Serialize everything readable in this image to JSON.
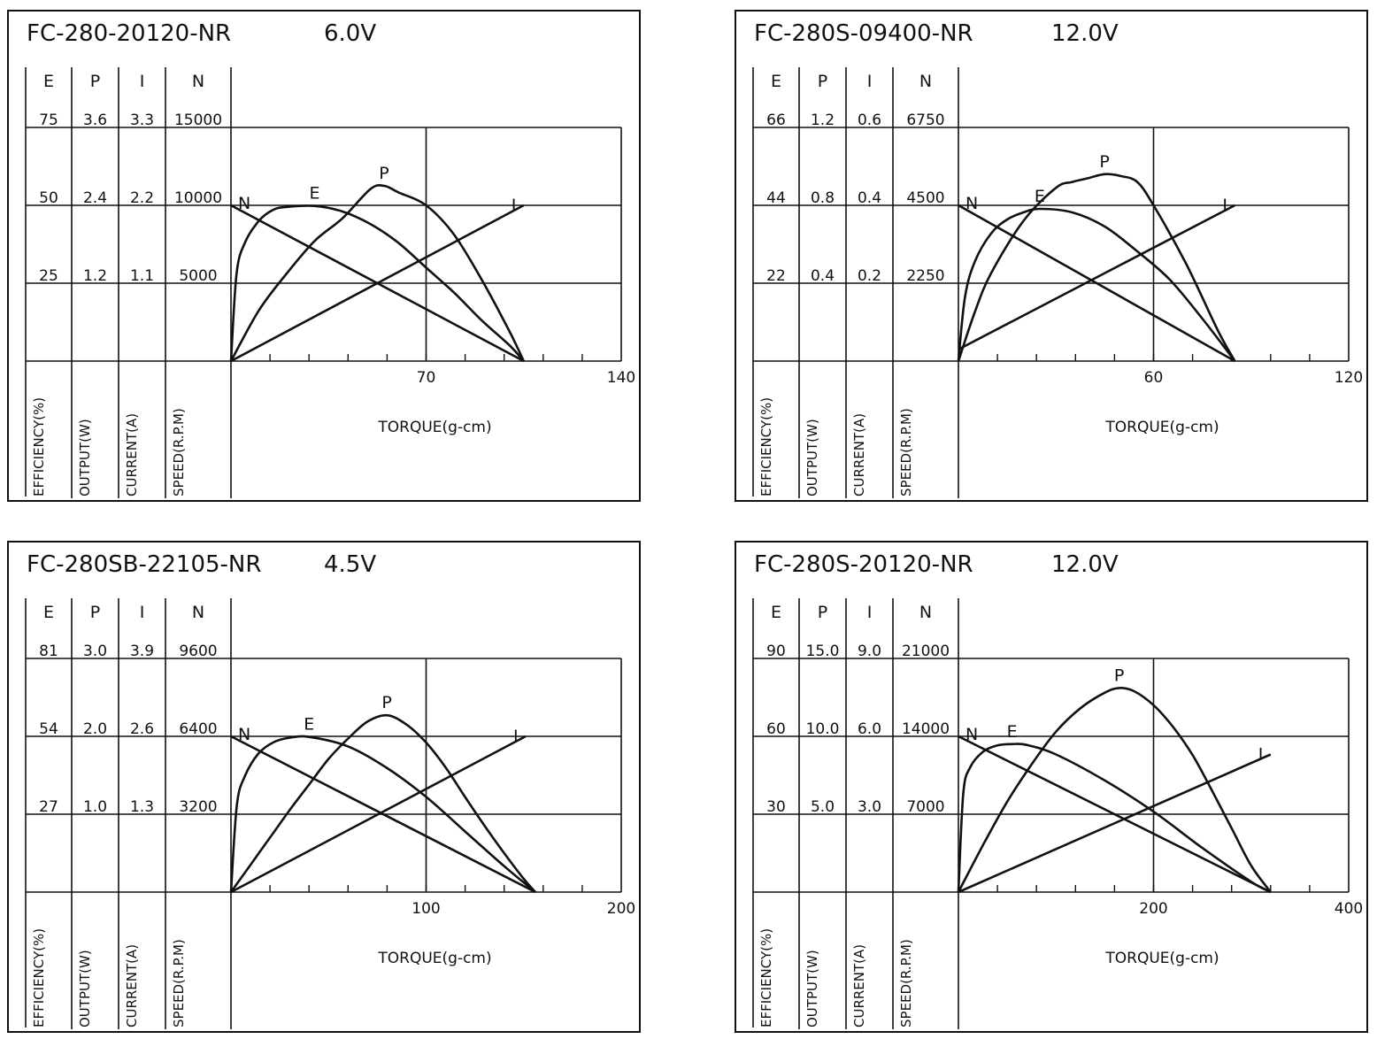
{
  "chart_data": [
    {
      "type": "line",
      "title": "FC-280-20120-NR",
      "voltage": "6.0V",
      "xlabel": "TORQUE(g-cm)",
      "xlim": [
        0,
        140
      ],
      "x_ticks": [
        "70",
        "140"
      ],
      "columns": [
        {
          "key": "E",
          "label": "EFFICIENCY(%)",
          "ticks": [
            "75",
            "50",
            "25"
          ]
        },
        {
          "key": "P",
          "label": "OUTPUT(W)",
          "ticks": [
            "3.6",
            "2.4",
            "1.2"
          ]
        },
        {
          "key": "I",
          "label": "CURRENT(A)",
          "ticks": [
            "3.3",
            "2.2",
            "1.1"
          ]
        },
        {
          "key": "N",
          "label": "SPEED(R.P.M)",
          "ticks": [
            "15000",
            "10000",
            "5000"
          ]
        }
      ],
      "series": [
        {
          "name": "N",
          "x": [
            0,
            105
          ],
          "y": [
            10000,
            0
          ]
        },
        {
          "name": "I",
          "x": [
            0,
            105
          ],
          "y": [
            0,
            2.2
          ]
        },
        {
          "name": "E",
          "x": [
            0,
            2,
            5,
            10,
            15,
            20,
            30,
            40,
            50,
            60,
            70,
            80,
            90,
            100,
            105
          ],
          "y": [
            0,
            28,
            38,
            45,
            48.5,
            49.5,
            49.8,
            48,
            44,
            38,
            30,
            22,
            13,
            5,
            0
          ]
        },
        {
          "name": "P",
          "x": [
            0,
            10,
            20,
            30,
            40,
            50,
            55,
            60,
            70,
            80,
            90,
            100,
            105
          ],
          "y": [
            0,
            0.78,
            1.35,
            1.85,
            2.2,
            2.65,
            2.7,
            2.6,
            2.4,
            1.95,
            1.25,
            0.45,
            0
          ]
        }
      ]
    },
    {
      "type": "line",
      "title": "FC-280S-09400-NR",
      "voltage": "12.0V",
      "xlabel": "TORQUE(g-cm)",
      "xlim": [
        0,
        120
      ],
      "x_ticks": [
        "60",
        "120"
      ],
      "columns": [
        {
          "key": "E",
          "label": "EFFICIENCY(%)",
          "ticks": [
            "66",
            "44",
            "22"
          ]
        },
        {
          "key": "P",
          "label": "OUTPUT(W)",
          "ticks": [
            "1.2",
            "0.8",
            "0.4"
          ]
        },
        {
          "key": "I",
          "label": "CURRENT(A)",
          "ticks": [
            "0.6",
            "0.4",
            "0.2"
          ]
        },
        {
          "key": "N",
          "label": "SPEED(R.P.M)",
          "ticks": [
            "6750",
            "4500",
            "2250"
          ]
        }
      ],
      "series": [
        {
          "name": "N",
          "x": [
            0,
            85
          ],
          "y": [
            4500,
            0
          ]
        },
        {
          "name": "I",
          "x": [
            0,
            85
          ],
          "y": [
            0.03,
            0.4
          ]
        },
        {
          "name": "E",
          "x": [
            0,
            2,
            5,
            10,
            15,
            20,
            25,
            35,
            45,
            55,
            65,
            75,
            85
          ],
          "y": [
            0,
            18,
            28,
            36,
            40,
            42,
            43,
            42,
            38,
            31,
            23,
            12,
            0
          ]
        },
        {
          "name": "P",
          "x": [
            0,
            5,
            10,
            20,
            30,
            35,
            40,
            45,
            50,
            55,
            60,
            70,
            80,
            85
          ],
          "y": [
            0,
            0.25,
            0.45,
            0.72,
            0.89,
            0.92,
            0.94,
            0.96,
            0.95,
            0.92,
            0.8,
            0.5,
            0.15,
            0
          ]
        }
      ]
    },
    {
      "type": "line",
      "title": "FC-280SB-22105-NR",
      "voltage": "4.5V",
      "xlabel": "TORQUE(g-cm)",
      "xlim": [
        0,
        200
      ],
      "x_ticks": [
        "100",
        "200"
      ],
      "columns": [
        {
          "key": "E",
          "label": "EFFICIENCY(%)",
          "ticks": [
            "81",
            "54",
            "27"
          ]
        },
        {
          "key": "P",
          "label": "OUTPUT(W)",
          "ticks": [
            "3.0",
            "2.0",
            "1.0"
          ]
        },
        {
          "key": "I",
          "label": "CURRENT(A)",
          "ticks": [
            "3.9",
            "2.6",
            "1.3"
          ]
        },
        {
          "key": "N",
          "label": "SPEED(R.P.M)",
          "ticks": [
            "9600",
            "6400",
            "3200"
          ]
        }
      ],
      "series": [
        {
          "name": "N",
          "x": [
            0,
            156
          ],
          "y": [
            6400,
            0
          ]
        },
        {
          "name": "I",
          "x": [
            0,
            151
          ],
          "y": [
            0,
            2.6
          ]
        },
        {
          "name": "E",
          "x": [
            0,
            3,
            7,
            14,
            22,
            30,
            40,
            60,
            80,
            100,
            120,
            140,
            156
          ],
          "y": [
            0,
            30,
            40,
            48,
            52,
            53.5,
            53.8,
            50.5,
            43,
            33,
            21,
            9,
            0
          ]
        },
        {
          "name": "P",
          "x": [
            0,
            10,
            20,
            30,
            40,
            50,
            60,
            70,
            80,
            90,
            100,
            110,
            120,
            130,
            140,
            150,
            156
          ],
          "y": [
            0,
            0.35,
            0.7,
            1.05,
            1.38,
            1.71,
            1.97,
            2.19,
            2.27,
            2.15,
            1.92,
            1.6,
            1.22,
            0.85,
            0.5,
            0.17,
            0
          ]
        }
      ]
    },
    {
      "type": "line",
      "title": "FC-280S-20120-NR",
      "voltage": "12.0V",
      "xlabel": "TORQUE(g-cm)",
      "xlim": [
        0,
        400
      ],
      "x_ticks": [
        "200",
        "400"
      ],
      "columns": [
        {
          "key": "E",
          "label": "EFFICIENCY(%)",
          "ticks": [
            "90",
            "60",
            "30"
          ]
        },
        {
          "key": "P",
          "label": "OUTPUT(W)",
          "ticks": [
            "15.0",
            "10.0",
            "5.0"
          ]
        },
        {
          "key": "I",
          "label": "CURRENT(A)",
          "ticks": [
            "9.0",
            "6.0",
            "3.0"
          ]
        },
        {
          "key": "N",
          "label": "SPEED(R.P.M)",
          "ticks": [
            "21000",
            "14000",
            "7000"
          ]
        }
      ],
      "series": [
        {
          "name": "N",
          "x": [
            0,
            320
          ],
          "y": [
            14000,
            0
          ]
        },
        {
          "name": "I",
          "x": [
            0,
            320
          ],
          "y": [
            0,
            5.3
          ]
        },
        {
          "name": "E",
          "x": [
            0,
            5,
            12,
            25,
            40,
            55,
            70,
            100,
            150,
            200,
            250,
            300,
            320
          ],
          "y": [
            0,
            38,
            48,
            54,
            56.5,
            57,
            56.7,
            53,
            43,
            31,
            17,
            4,
            0
          ]
        },
        {
          "name": "P",
          "x": [
            0,
            25,
            50,
            75,
            100,
            125,
            150,
            165,
            180,
            200,
            220,
            240,
            260,
            280,
            300,
            320
          ],
          "y": [
            0,
            3.0,
            5.8,
            8.2,
            10.3,
            11.8,
            12.8,
            13.1,
            12.9,
            12.0,
            10.6,
            8.8,
            6.5,
            4.1,
            1.7,
            0
          ]
        }
      ]
    }
  ]
}
